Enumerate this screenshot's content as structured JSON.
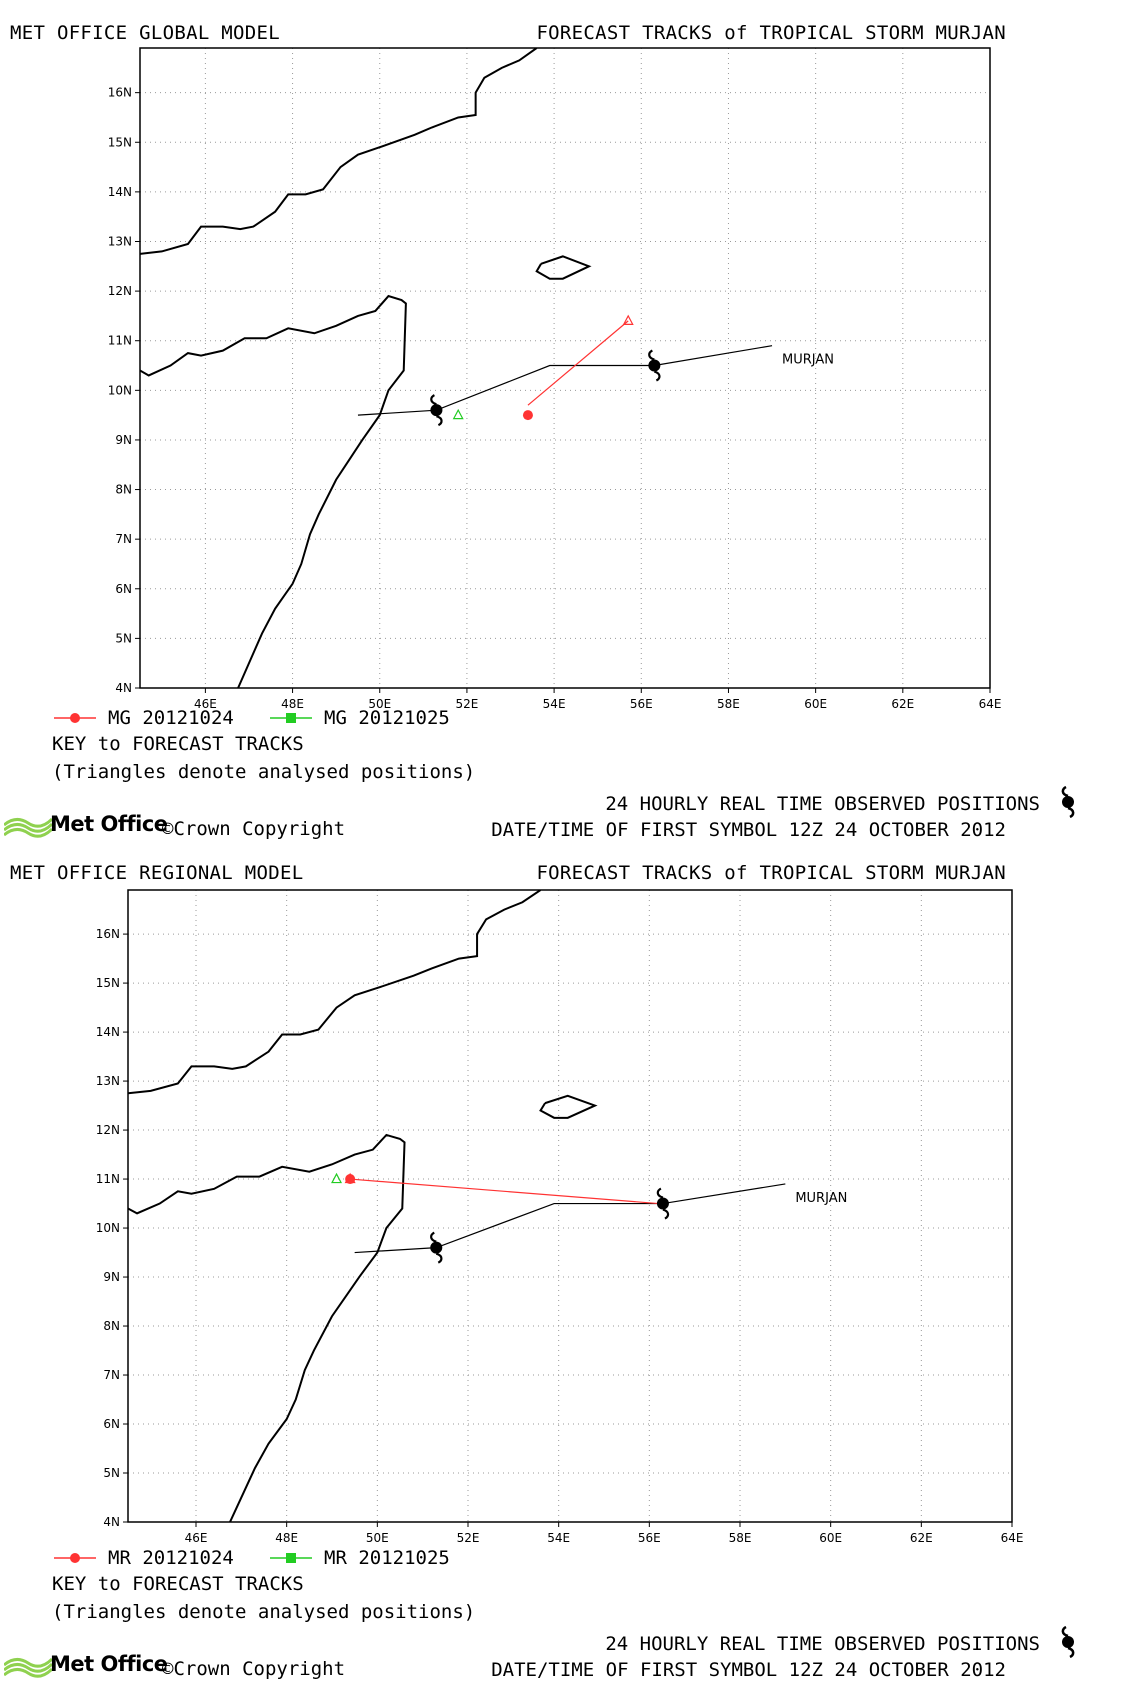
{
  "panels": [
    {
      "model_label": "MET OFFICE GLOBAL MODEL",
      "title": "FORECAST TRACKS of TROPICAL STORM MURJAN",
      "storm_label": "MURJAN",
      "legend": [
        {
          "label": "MG 20121024",
          "color": "#ff3333",
          "marker": "circle"
        },
        {
          "label": "MG 20121025",
          "color": "#22cc22",
          "marker": "square"
        }
      ],
      "key_title": "KEY to FORECAST TRACKS",
      "key_note": "(Triangles denote analysed positions)",
      "footer_line1": "24 HOURLY REAL TIME OBSERVED POSITIONS",
      "footer_line2": "DATE/TIME OF FIRST SYMBOL 12Z 24 OCTOBER 2012",
      "brand": "Met Office",
      "copyright": "©Crown Copyright"
    },
    {
      "model_label": "MET OFFICE REGIONAL MODEL",
      "title": "FORECAST TRACKS of TROPICAL STORM MURJAN",
      "storm_label": "MURJAN",
      "legend": [
        {
          "label": "MR 20121024",
          "color": "#ff3333",
          "marker": "circle"
        },
        {
          "label": "MR 20121025",
          "color": "#22cc22",
          "marker": "square"
        }
      ],
      "key_title": "KEY to FORECAST TRACKS",
      "key_note": "(Triangles denote analysed positions)",
      "footer_line1": "24 HOURLY REAL TIME OBSERVED POSITIONS",
      "footer_line2": "DATE/TIME OF FIRST SYMBOL 12Z 24 OCTOBER 2012",
      "brand": "Met Office",
      "copyright": "©Crown Copyright"
    }
  ],
  "map": {
    "lon_range": [
      44.5,
      64
    ],
    "lat_range": [
      4,
      16.9
    ],
    "x_ticks": [
      "46E",
      "48E",
      "50E",
      "52E",
      "54E",
      "56E",
      "58E",
      "60E",
      "62E",
      "64E"
    ],
    "y_ticks": [
      "4N",
      "5N",
      "6N",
      "7N",
      "8N",
      "9N",
      "10N",
      "11N",
      "12N",
      "13N",
      "14N",
      "15N",
      "16N"
    ],
    "grid": "dotted",
    "colors": {
      "observed": "#000000",
      "forecast_1024": "#ff3333",
      "forecast_1025": "#22cc22",
      "coast": "#000000"
    }
  },
  "chart_data": [
    {
      "type": "map",
      "observed_track": [
        [
          49.5,
          9.5
        ],
        [
          51.3,
          9.6
        ],
        [
          53.9,
          10.5
        ],
        [
          56.3,
          10.5
        ],
        [
          59.0,
          10.9
        ]
      ],
      "observed_symbols": [
        [
          51.3,
          9.6
        ],
        [
          56.3,
          10.5
        ]
      ],
      "forecast_20121024": {
        "analysed": [
          55.7,
          11.4
        ],
        "track": [
          [
            55.7,
            11.4
          ],
          [
            53.4,
            9.7
          ]
        ],
        "end": [
          53.4,
          9.5
        ]
      },
      "forecast_20121025": {
        "analysed": [
          51.8,
          9.5
        ]
      }
    },
    {
      "type": "map",
      "observed_track": [
        [
          49.5,
          9.5
        ],
        [
          51.3,
          9.6
        ],
        [
          53.9,
          10.5
        ],
        [
          56.3,
          10.5
        ],
        [
          59.0,
          10.9
        ]
      ],
      "observed_symbols": [
        [
          51.3,
          9.6
        ],
        [
          56.3,
          10.5
        ]
      ],
      "forecast_20121024": {
        "analysed": [
          49.4,
          11.0
        ],
        "track": [
          [
            49.4,
            11.0
          ],
          [
            56.2,
            10.5
          ]
        ],
        "end": [
          49.4,
          11.0
        ]
      },
      "forecast_20121025": {
        "analysed": [
          49.1,
          11.0
        ]
      }
    }
  ]
}
